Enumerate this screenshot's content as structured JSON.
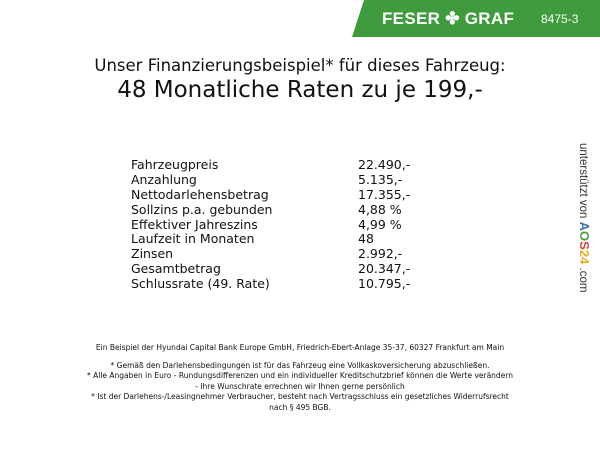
{
  "header": {
    "brand": "FESER ✤ GRAF",
    "code": "8475-3",
    "brand_color": "#3f9b3d"
  },
  "title": {
    "line1": "Unser Finanzierungsbeispiel* für dieses Fahrzeug:",
    "line2": "48 Monatliche Raten zu je 199,-"
  },
  "rows": [
    {
      "label": "Fahrzeugpreis",
      "value": "22.490,-"
    },
    {
      "label": "Anzahlung",
      "value": "5.135,-"
    },
    {
      "label": "Nettodarlehensbetrag",
      "value": "17.355,-"
    },
    {
      "label": "Sollzins p.a. gebunden",
      "value": "4,88 %"
    },
    {
      "label": "Effektiver Jahreszins",
      "value": "4,99 %"
    },
    {
      "label": "Laufzeit in Monaten",
      "value": "48"
    },
    {
      "label": "Zinsen",
      "value": "2.992,-"
    },
    {
      "label": "Gesamtbetrag",
      "value": "20.347,-"
    },
    {
      "label": "Schlussrate (49. Rate)",
      "value": "10.795,-"
    }
  ],
  "side": {
    "prefix": "unterstützt von",
    "logo": "AOS24",
    ".com": ".com"
  },
  "footer": {
    "bank": "Ein Beispiel der Hyundai Capital Bank Europe GmbH, Friedrich-Ebert-Anlage 35-37, 60327 Frankfurt am Main",
    "note1": "* Gemäß den Darlehensbedingungen ist für das Fahrzeug eine Vollkaskoversicherung abzuschließen.",
    "note2a": "* Alle Angaben in Euro - Rundungsdifferenzen und ein individueller Kreditschutzbrief können die Werte verändern",
    "note2b": "- Ihre Wunschrate errechnen wir Ihnen gerne persönlich",
    "note3a": "* Ist der Darlehens-/Leasingnehmer Verbraucher, besteht nach Vertragsschluss ein gesetzliches Widerrufsrecht",
    "note3b": "nach § 495 BGB."
  }
}
